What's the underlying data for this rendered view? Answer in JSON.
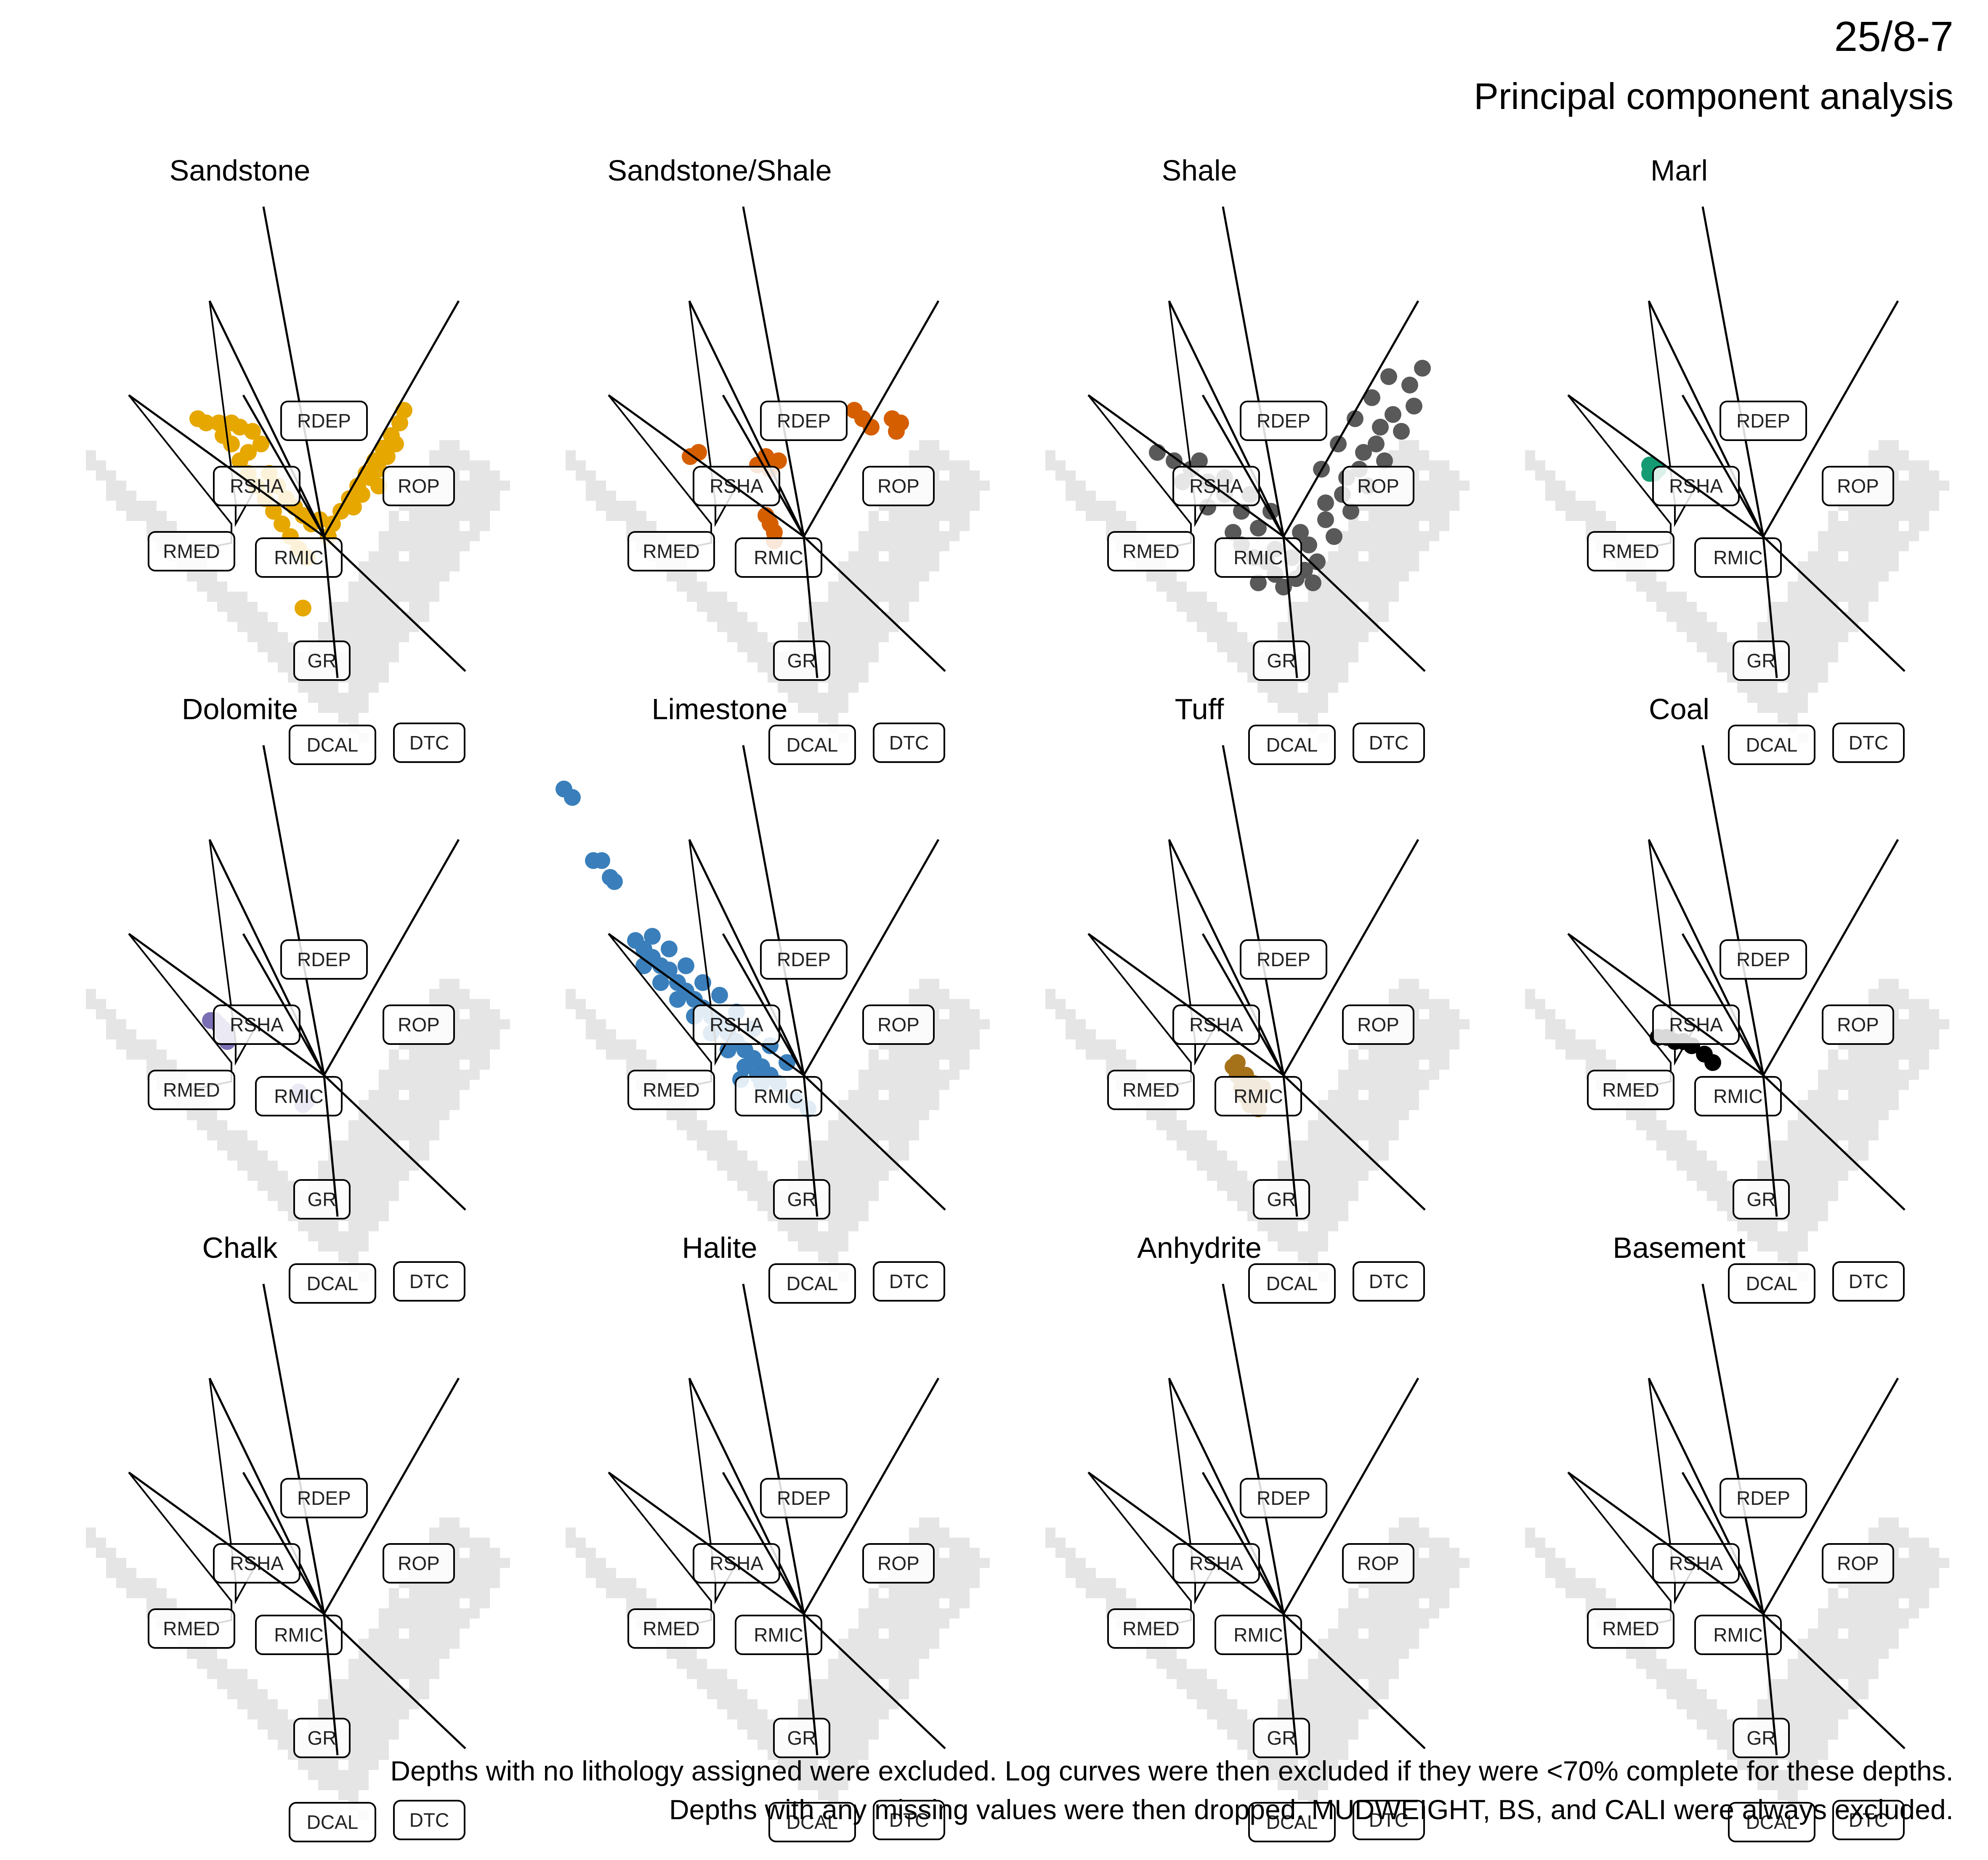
{
  "header": {
    "well": "25/8-7",
    "subtitle": "Principal component analysis"
  },
  "caption": [
    "Depths with no lithology assigned were excluded. Log curves were then excluded if they were <70% complete for these depths.",
    "Depths with any missing values were then dropped. MUDWEIGHT, BS, and CALI were always excluded."
  ],
  "colors": {
    "background_density": "#e5e5e5",
    "loading_line": "#000000",
    "label_border": "#000000",
    "label_fill": "#ffffff"
  },
  "chart_data": {
    "type": "scatter",
    "description_of_axes": "Biplot of first two principal components; axes hidden",
    "loadings": [
      {
        "name": "RDEP",
        "dx": -0.09,
        "dy": 0.49
      },
      {
        "name": "RSHA",
        "dx": -0.17,
        "dy": 0.35
      },
      {
        "name": "RMED",
        "dx": -0.29,
        "dy": 0.21
      },
      {
        "name": "RMIC",
        "dx": -0.12,
        "dy": 0.21
      },
      {
        "name": "ROP",
        "dx": 0.2,
        "dy": 0.35
      },
      {
        "name": "GR",
        "dx": 0.0,
        "dy": 0.0
      },
      {
        "name": "DCAL",
        "dx": 0.02,
        "dy": -0.21
      },
      {
        "name": "DTC",
        "dx": 0.21,
        "dy": -0.2
      }
    ],
    "panels": [
      {
        "title": "Sandstone",
        "color": "#E6A700",
        "points": [
          [
            -0.3,
            0.28
          ],
          [
            -0.28,
            0.27
          ],
          [
            -0.25,
            0.27
          ],
          [
            -0.22,
            0.27
          ],
          [
            -0.2,
            0.26
          ],
          [
            -0.17,
            0.25
          ],
          [
            -0.15,
            0.22
          ],
          [
            -0.22,
            0.22
          ],
          [
            -0.2,
            0.18
          ],
          [
            -0.18,
            0.15
          ],
          [
            -0.16,
            0.12
          ],
          [
            -0.14,
            0.09
          ],
          [
            -0.12,
            0.06
          ],
          [
            -0.1,
            0.03
          ],
          [
            -0.08,
            0.0
          ],
          [
            -0.06,
            -0.03
          ],
          [
            -0.04,
            -0.05
          ],
          [
            -0.13,
            0.15
          ],
          [
            -0.11,
            0.12
          ],
          [
            -0.09,
            0.09
          ],
          [
            -0.07,
            0.07
          ],
          [
            -0.05,
            0.05
          ],
          [
            -0.03,
            0.03
          ],
          [
            -0.01,
            0.04
          ],
          [
            0.02,
            0.03
          ],
          [
            0.04,
            0.06
          ],
          [
            0.06,
            0.09
          ],
          [
            0.08,
            0.12
          ],
          [
            0.1,
            0.15
          ],
          [
            0.12,
            0.18
          ],
          [
            0.14,
            0.21
          ],
          [
            0.16,
            0.24
          ],
          [
            0.18,
            0.27
          ],
          [
            0.19,
            0.3
          ],
          [
            0.17,
            0.22
          ],
          [
            0.15,
            0.19
          ],
          [
            0.13,
            0.16
          ],
          [
            0.11,
            0.14
          ],
          [
            0.09,
            0.1
          ],
          [
            0.07,
            0.07
          ],
          [
            -0.05,
            -0.17
          ],
          [
            -0.18,
            0.2
          ],
          [
            -0.24,
            0.24
          ],
          [
            0.01,
            0.0
          ],
          [
            0.13,
            0.12
          ]
        ]
      },
      {
        "title": "Sandstone/Shale",
        "color": "#D55E00",
        "points": [
          [
            -0.27,
            0.19
          ],
          [
            -0.25,
            0.2
          ],
          [
            -0.09,
            0.19
          ],
          [
            -0.06,
            0.18
          ],
          [
            -0.11,
            0.17
          ],
          [
            -0.08,
            0.16
          ],
          [
            -0.09,
            0.05
          ],
          [
            -0.08,
            0.03
          ],
          [
            -0.07,
            0.01
          ],
          [
            -0.07,
            -0.01
          ],
          [
            0.12,
            0.3
          ],
          [
            0.14,
            0.28
          ],
          [
            0.16,
            0.26
          ],
          [
            0.21,
            0.28
          ],
          [
            0.23,
            0.27
          ],
          [
            0.22,
            0.25
          ]
        ]
      },
      {
        "title": "Shale",
        "color": "#595959",
        "points": [
          [
            -0.3,
            0.2
          ],
          [
            -0.26,
            0.18
          ],
          [
            -0.22,
            0.16
          ],
          [
            -0.18,
            0.13
          ],
          [
            -0.14,
            0.1
          ],
          [
            -0.1,
            0.06
          ],
          [
            -0.06,
            0.02
          ],
          [
            -0.02,
            -0.03
          ],
          [
            0.02,
            -0.05
          ],
          [
            0.06,
            -0.02
          ],
          [
            0.1,
            0.04
          ],
          [
            0.14,
            0.1
          ],
          [
            0.18,
            0.16
          ],
          [
            0.22,
            0.22
          ],
          [
            0.26,
            0.29
          ],
          [
            0.3,
            0.36
          ],
          [
            0.33,
            0.4
          ],
          [
            -0.24,
            0.13
          ],
          [
            -0.18,
            0.07
          ],
          [
            -0.12,
            0.01
          ],
          [
            -0.07,
            -0.05
          ],
          [
            -0.02,
            -0.09
          ],
          [
            0.03,
            -0.1
          ],
          [
            0.08,
            -0.06
          ],
          [
            0.12,
            0.0
          ],
          [
            0.16,
            0.06
          ],
          [
            0.2,
            0.12
          ],
          [
            0.24,
            0.18
          ],
          [
            0.28,
            0.25
          ],
          [
            0.31,
            0.31
          ],
          [
            -0.2,
            0.18
          ],
          [
            -0.14,
            0.14
          ],
          [
            -0.08,
            0.1
          ],
          [
            -0.03,
            0.06
          ],
          [
            0.04,
            0.01
          ],
          [
            0.1,
            0.08
          ],
          [
            0.15,
            0.14
          ],
          [
            0.19,
            0.2
          ],
          [
            0.23,
            0.26
          ],
          [
            -0.1,
            -0.02
          ],
          [
            -0.04,
            -0.06
          ],
          [
            0.05,
            -0.08
          ],
          [
            0.0,
            -0.12
          ],
          [
            -0.06,
            -0.11
          ],
          [
            0.07,
            -0.11
          ],
          [
            0.09,
            0.16
          ],
          [
            0.13,
            0.22
          ],
          [
            0.17,
            0.28
          ],
          [
            0.21,
            0.33
          ],
          [
            0.25,
            0.38
          ]
        ]
      },
      {
        "title": "Marl",
        "color": "#159B73",
        "points": [
          [
            -0.27,
            0.17
          ],
          [
            -0.26,
            0.16
          ],
          [
            -0.27,
            0.15
          ],
          [
            -0.26,
            0.15
          ],
          [
            -0.25,
            0.16
          ]
        ]
      },
      {
        "title": "Dolomite",
        "color": "#7A6FB5",
        "points": [
          [
            -0.27,
            0.13
          ],
          [
            -0.26,
            0.13
          ],
          [
            -0.25,
            0.12
          ],
          [
            -0.24,
            0.11
          ],
          [
            -0.24,
            0.1
          ],
          [
            -0.23,
            0.09
          ],
          [
            -0.23,
            0.08
          ],
          [
            -0.06,
            -0.04
          ],
          [
            -0.05,
            -0.05
          ],
          [
            -0.04,
            -0.06
          ],
          [
            -0.05,
            -0.07
          ]
        ]
      },
      {
        "title": "Limestone",
        "color": "#3A7FBB",
        "points": [
          [
            -0.57,
            0.68
          ],
          [
            -0.55,
            0.66
          ],
          [
            -0.5,
            0.51
          ],
          [
            -0.48,
            0.51
          ],
          [
            -0.46,
            0.47
          ],
          [
            -0.45,
            0.46
          ],
          [
            -0.4,
            0.32
          ],
          [
            -0.38,
            0.3
          ],
          [
            -0.36,
            0.28
          ],
          [
            -0.34,
            0.26
          ],
          [
            -0.32,
            0.25
          ],
          [
            -0.3,
            0.22
          ],
          [
            -0.28,
            0.2
          ],
          [
            -0.26,
            0.18
          ],
          [
            -0.24,
            0.16
          ],
          [
            -0.22,
            0.14
          ],
          [
            -0.2,
            0.12
          ],
          [
            -0.18,
            0.1
          ],
          [
            -0.16,
            0.08
          ],
          [
            -0.14,
            0.06
          ],
          [
            -0.12,
            0.04
          ],
          [
            -0.1,
            0.02
          ],
          [
            -0.08,
            0.0
          ],
          [
            -0.06,
            -0.02
          ],
          [
            -0.38,
            0.26
          ],
          [
            -0.34,
            0.22
          ],
          [
            -0.3,
            0.18
          ],
          [
            -0.26,
            0.14
          ],
          [
            -0.22,
            0.1
          ],
          [
            -0.18,
            0.06
          ],
          [
            -0.14,
            0.02
          ],
          [
            -0.1,
            -0.02
          ],
          [
            -0.36,
            0.33
          ],
          [
            -0.32,
            0.3
          ],
          [
            -0.28,
            0.26
          ],
          [
            -0.24,
            0.22
          ],
          [
            -0.2,
            0.19
          ],
          [
            -0.16,
            0.15
          ],
          [
            -0.12,
            0.11
          ],
          [
            -0.08,
            0.07
          ],
          [
            -0.04,
            0.03
          ],
          [
            -0.02,
            -0.06
          ],
          [
            0.01,
            -0.08
          ],
          [
            -0.15,
            -0.01
          ],
          [
            -0.11,
            0.0
          ]
        ]
      },
      {
        "title": "Tuff",
        "color": "#A67219",
        "points": [
          [
            -0.12,
            0.02
          ],
          [
            -0.11,
            0.0
          ],
          [
            -0.1,
            -0.01
          ],
          [
            -0.09,
            0.0
          ],
          [
            -0.1,
            -0.03
          ],
          [
            -0.09,
            -0.05
          ],
          [
            -0.08,
            -0.07
          ],
          [
            -0.06,
            -0.06
          ],
          [
            -0.05,
            -0.03
          ],
          [
            -0.07,
            -0.02
          ],
          [
            -0.11,
            0.03
          ],
          [
            -0.06,
            -0.08
          ]
        ]
      },
      {
        "title": "Coal",
        "color": "#000000",
        "points": [
          [
            -0.25,
            0.09
          ],
          [
            -0.23,
            0.09
          ],
          [
            -0.21,
            0.08
          ],
          [
            -0.19,
            0.08
          ],
          [
            -0.17,
            0.07
          ],
          [
            -0.14,
            0.05
          ],
          [
            -0.12,
            0.03
          ]
        ]
      },
      {
        "title": "Chalk",
        "color": "#999999",
        "points": []
      },
      {
        "title": "Halite",
        "color": "#999999",
        "points": []
      },
      {
        "title": "Anhydrite",
        "color": "#999999",
        "points": []
      },
      {
        "title": "Basement",
        "color": "#999999",
        "points": []
      }
    ]
  }
}
